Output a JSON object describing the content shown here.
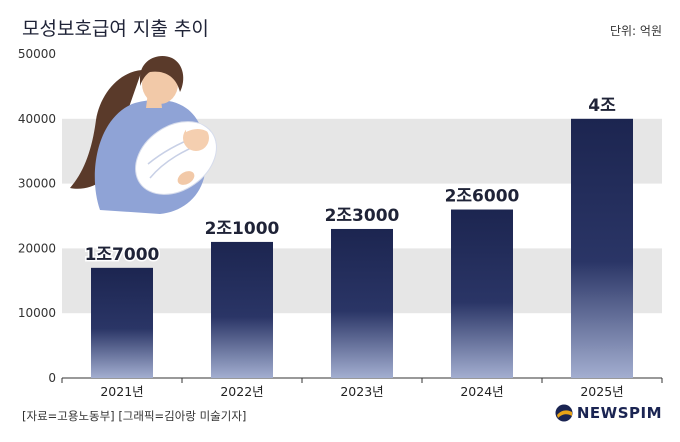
{
  "header": {
    "title": "모성보호급여 지출 추이",
    "unit": "단위: 억원"
  },
  "footer": {
    "source": "[자료=고용노동부] [그래픽=김아랑 미술기자]",
    "logo": "NEWSPIM"
  },
  "illustration": {
    "icon": "mother-holding-baby-illustration"
  },
  "colors": {
    "bar_top": "#1c2550",
    "bar_bottom": "#9aa6c9",
    "band": "#e6e6e6",
    "text": "#1f2337",
    "logo_accent": "#e8a317"
  },
  "chart_data": {
    "type": "bar",
    "categories": [
      "2021년",
      "2022년",
      "2023년",
      "2024년",
      "2025년"
    ],
    "values": [
      17000,
      21000,
      23000,
      26000,
      40000
    ],
    "data_labels": [
      "1조7000",
      "2조1000",
      "2조3000",
      "2조6000",
      "4조"
    ],
    "yticks": [
      "0",
      "10000",
      "20000",
      "30000",
      "40000",
      "50000"
    ],
    "ylim": [
      0,
      50000
    ],
    "title": "모성보호급여 지출 추이",
    "xlabel": "",
    "ylabel": "",
    "grid": "alternating horizontal bands"
  }
}
